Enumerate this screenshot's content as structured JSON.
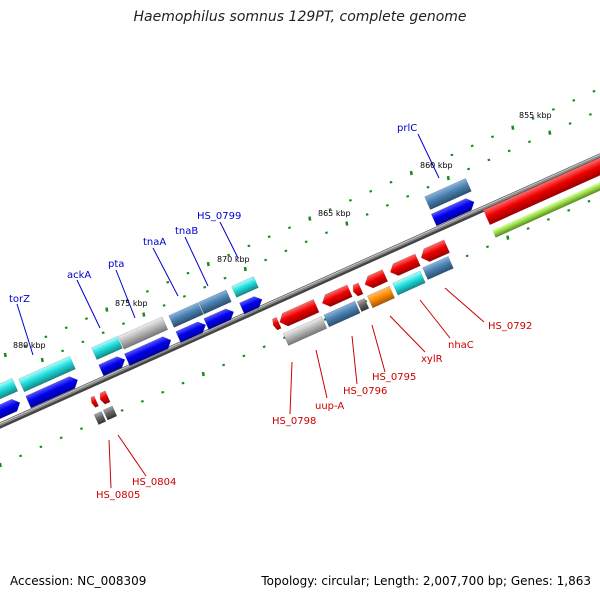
{
  "title": "Haemophilus somnus 129PT, complete genome",
  "footer": {
    "accession": "Accession: NC_008309",
    "topology": "Topology: circular; Length: 2,007,700 bp; Genes: 1,863"
  },
  "scale_labels": [
    "855 kbp",
    "860 kbp",
    "865 kbp",
    "870 kbp",
    "875 kbp",
    "880 kbp"
  ],
  "gene_labels_top": [
    "prlC",
    "HS_0799",
    "tnaB",
    "tnaA",
    "pta",
    "ackA",
    "torZ"
  ],
  "gene_labels_bottom": [
    "HS_0792",
    "nhaC",
    "xylR",
    "HS_0795",
    "HS_0796",
    "uup-A",
    "HS_0798",
    "HS_0804",
    "HS_0805"
  ],
  "colors": {
    "backbone": "#6e6e6e",
    "forward_blue": "#0000ee",
    "rna_red": "#ee0000",
    "cyan": "#22dddd",
    "steel": "#4a80b0",
    "gray": "#b8b8b8",
    "orange": "#ff8c00",
    "lime": "#99dd44",
    "tick_green": "#1a8a1a",
    "label_blue": "#0000cc",
    "label_red": "#cc0000"
  }
}
